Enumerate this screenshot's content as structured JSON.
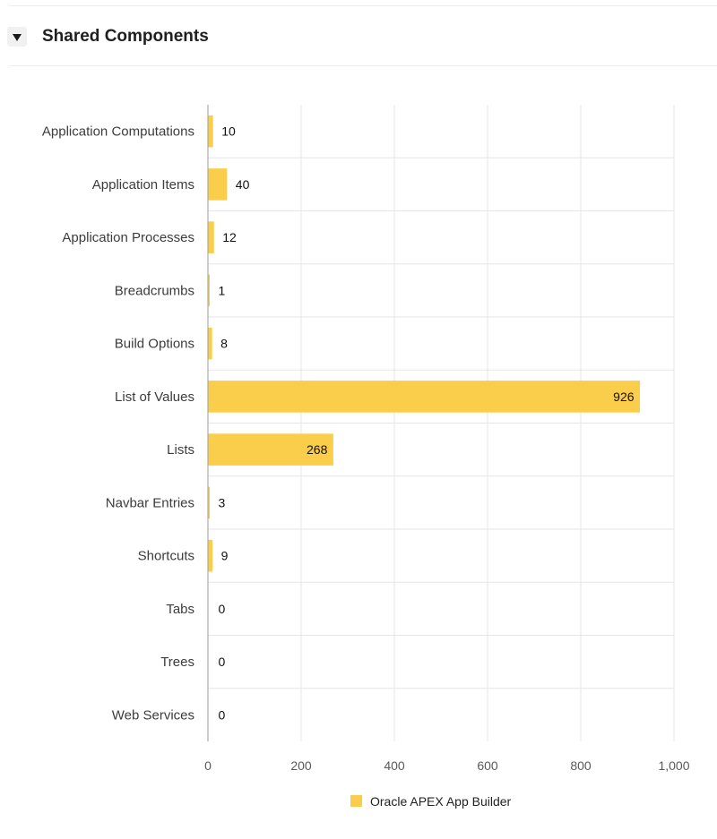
{
  "region": {
    "title": "Shared Components"
  },
  "icons": {
    "toggle": "collapse-triangle-icon"
  },
  "colors": {
    "bar": "#FACD4A",
    "grid": "#E6E6E6",
    "axis": "#9E9E9E"
  },
  "chart_data": {
    "type": "bar",
    "orientation": "horizontal",
    "categories": [
      "Application Computations",
      "Application Items",
      "Application Processes",
      "Breadcrumbs",
      "Build Options",
      "List of Values",
      "Lists",
      "Navbar Entries",
      "Shortcuts",
      "Tabs",
      "Trees",
      "Web Services"
    ],
    "series": [
      {
        "name": "Oracle APEX App Builder",
        "values": [
          10,
          40,
          12,
          1,
          8,
          926,
          268,
          3,
          9,
          0,
          0,
          0
        ]
      }
    ],
    "xlim": [
      0,
      1000
    ],
    "xticks": [
      "0",
      "200",
      "400",
      "600",
      "800",
      "1,000"
    ],
    "grid": true,
    "legend": "bottom",
    "data_labels": true
  }
}
